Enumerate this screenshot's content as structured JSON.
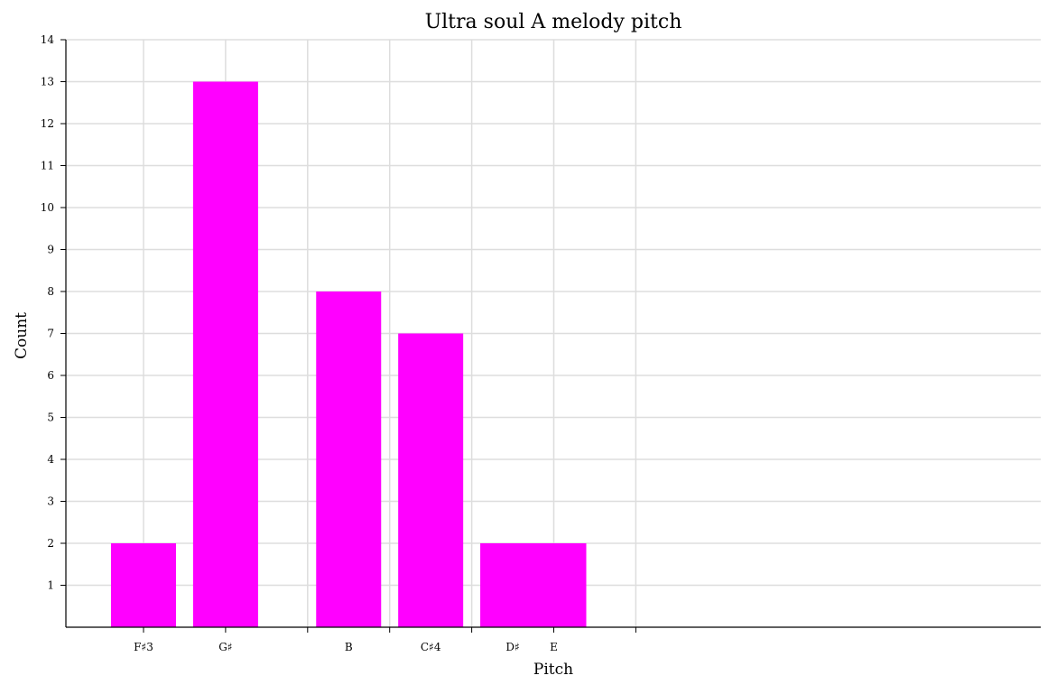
{
  "chart_data": {
    "type": "bar",
    "title": "Ultra soul A melody pitch",
    "xlabel": "Pitch",
    "ylabel": "Count",
    "x_tick_labels": [
      "F♯3",
      "G♯",
      "",
      "B",
      "C♯4",
      "D♯",
      "E"
    ],
    "categories": [
      "F♯3",
      "G♯",
      "B",
      "C♯4",
      "D♯",
      "E"
    ],
    "bar_slots": [
      0,
      2,
      5,
      7,
      9,
      10
    ],
    "values": [
      2,
      13,
      8,
      7,
      2,
      2
    ],
    "ylim": [
      0,
      14
    ],
    "y_ticks": [
      1,
      2,
      3,
      4,
      5,
      6,
      7,
      8,
      9,
      10,
      11,
      12,
      13,
      14
    ],
    "grid": true,
    "bar_color": "#ff00ff",
    "grid_color": "#dddddd",
    "axis_color": "#000000"
  }
}
